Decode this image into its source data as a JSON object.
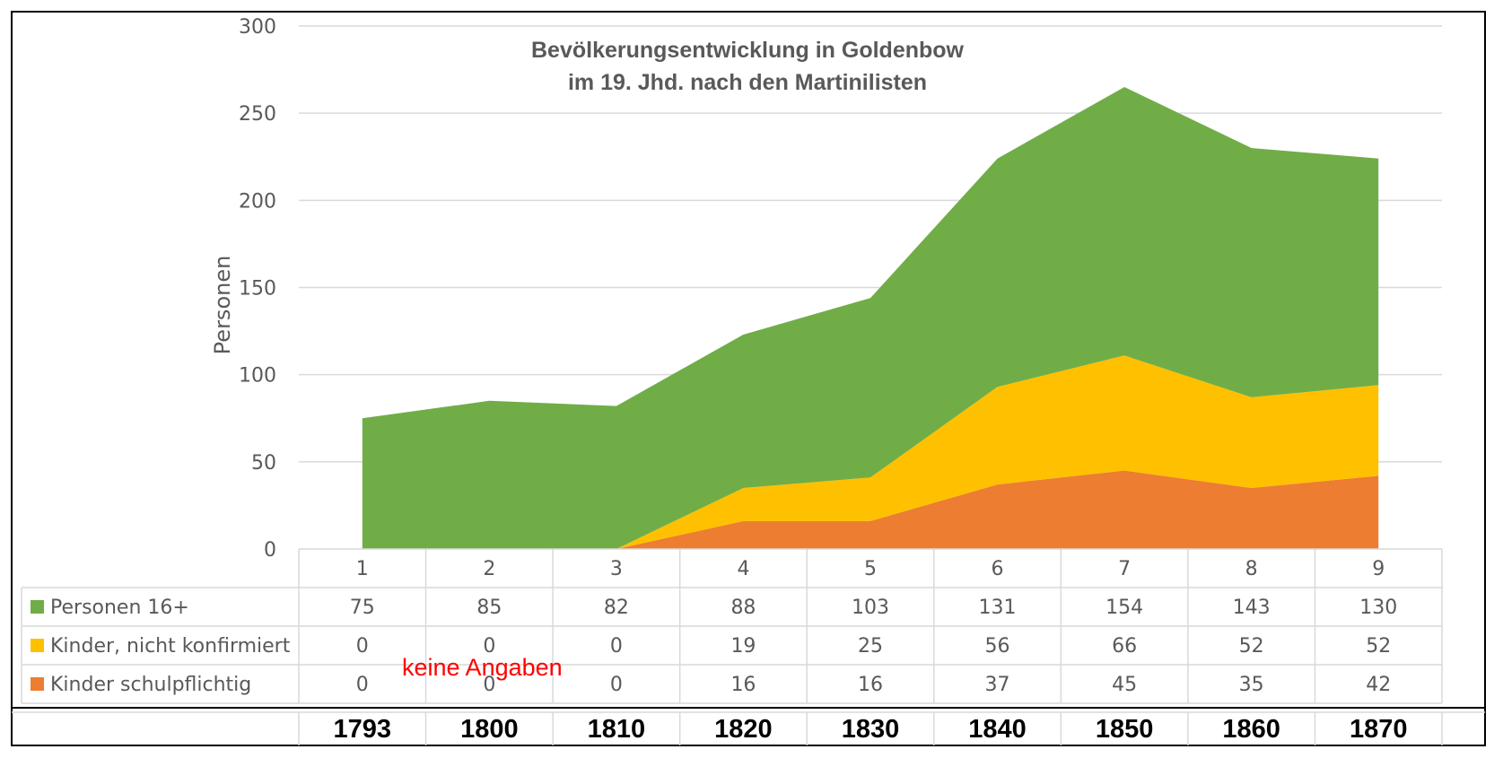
{
  "chart_data": {
    "type": "area",
    "stacked": true,
    "title": [
      "Bevölkerungsentwicklung in Goldenbow",
      "im 19. Jhd. nach den Martinilisten"
    ],
    "ylabel": "Personen",
    "ylim": [
      0,
      300
    ],
    "yticks": [
      "0",
      "50",
      "100",
      "150",
      "200",
      "250",
      "300"
    ],
    "categories": [
      "1",
      "2",
      "3",
      "4",
      "5",
      "6",
      "7",
      "8",
      "9"
    ],
    "years": [
      "1793",
      "1800",
      "1810",
      "1820",
      "1830",
      "1840",
      "1850",
      "1860",
      "1870"
    ],
    "grid": true,
    "legend": "data-table",
    "series": [
      {
        "name": "Personen 16+",
        "color": "#70ad47",
        "values": [
          75,
          85,
          82,
          88,
          103,
          131,
          154,
          143,
          130
        ]
      },
      {
        "name": "Kinder, nicht konfirmiert",
        "color": "#ffc000",
        "values": [
          0,
          0,
          0,
          19,
          25,
          56,
          66,
          52,
          52
        ]
      },
      {
        "name": "Kinder schulpflichtig",
        "color": "#ed7d31",
        "values": [
          0,
          0,
          0,
          16,
          16,
          37,
          45,
          35,
          42
        ]
      }
    ],
    "annotation": "keine Angaben"
  }
}
